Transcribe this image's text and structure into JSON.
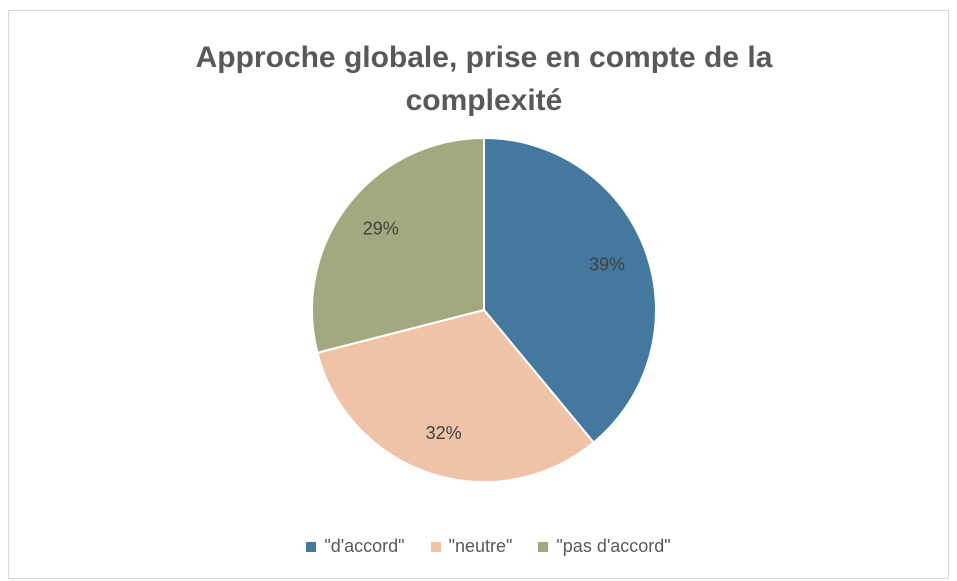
{
  "chart_data": {
    "type": "pie",
    "title": "Approche globale, prise en compte de la complexité",
    "categories": [
      "\"d'accord\"",
      "\"neutre\"",
      "\"pas d'accord\""
    ],
    "values": [
      39,
      32,
      29
    ],
    "value_labels": [
      "39%",
      "32%",
      "29%"
    ],
    "colors": [
      "#44789f",
      "#efc3a8",
      "#a3a97e"
    ],
    "legend": "bottom"
  }
}
